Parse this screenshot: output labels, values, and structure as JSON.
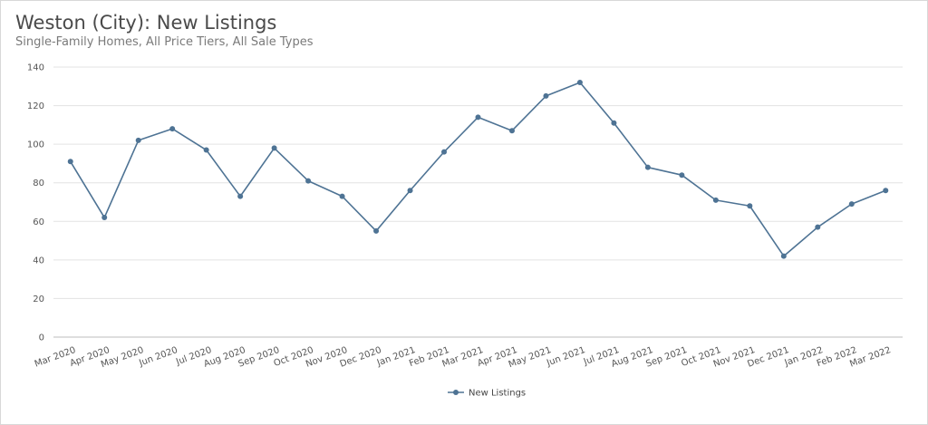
{
  "chart_data": {
    "type": "line",
    "title": "Weston (City): New Listings",
    "subtitle": "Single-Family Homes, All Price Tiers, All Sale Types",
    "xlabel": "",
    "ylabel": "",
    "ylim": [
      0,
      140
    ],
    "yticks": [
      0,
      20,
      40,
      60,
      80,
      100,
      120,
      140
    ],
    "grid": true,
    "legend_position": "bottom-center",
    "categories": [
      "Mar 2020",
      "Apr 2020",
      "May 2020",
      "Jun 2020",
      "Jul 2020",
      "Aug 2020",
      "Sep 2020",
      "Oct 2020",
      "Nov 2020",
      "Dec 2020",
      "Jan 2021",
      "Feb 2021",
      "Mar 2021",
      "Apr 2021",
      "May 2021",
      "Jun 2021",
      "Jul 2021",
      "Aug 2021",
      "Sep 2021",
      "Oct 2021",
      "Nov 2021",
      "Dec 2021",
      "Jan 2022",
      "Feb 2022",
      "Mar 2022"
    ],
    "series": [
      {
        "name": "New Listings",
        "color": "#4e7394",
        "values": [
          91,
          62,
          102,
          108,
          97,
          73,
          98,
          81,
          73,
          55,
          76,
          96,
          114,
          107,
          125,
          132,
          111,
          88,
          84,
          71,
          68,
          42,
          57,
          69,
          76
        ]
      }
    ]
  }
}
